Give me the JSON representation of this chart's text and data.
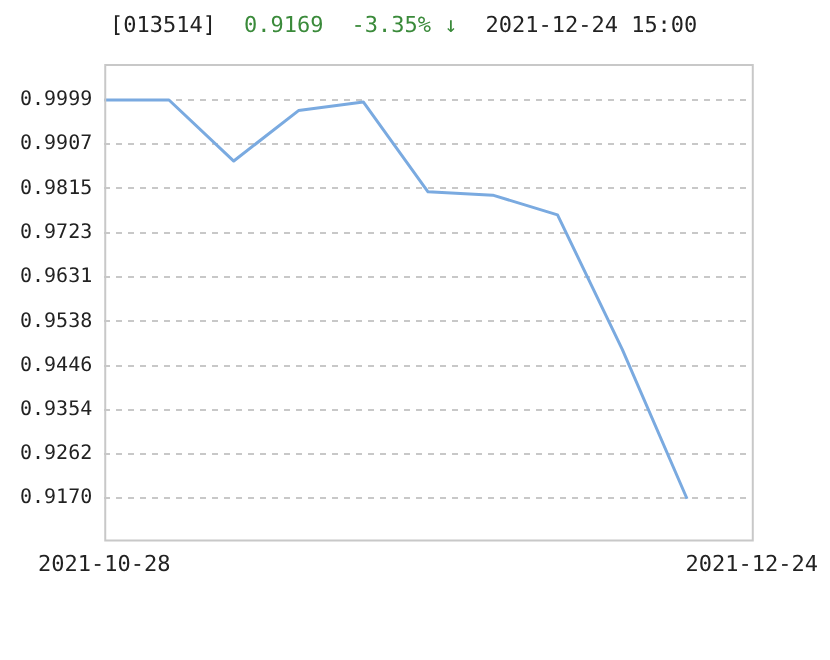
{
  "chart_data": {
    "type": "line",
    "title": "[013514]",
    "annotations": [
      "0.9169",
      "-3.35% ↓",
      "2021-12-24 15:00"
    ],
    "categories": [
      "2021-10-28",
      null,
      null,
      null,
      null,
      null,
      null,
      null,
      null,
      null,
      "2021-12-24"
    ],
    "series": [
      {
        "color": "#7aaae0",
        "values": [
          0.9999,
          0.9999,
          0.9872,
          0.9977,
          0.9995,
          0.9808,
          0.9801,
          0.976,
          0.948,
          0.9169,
          null
        ]
      }
    ],
    "ylim": [
      0.9084,
      1.0074
    ],
    "yticks": [
      {
        "value": 0.917,
        "label": "0.9170"
      },
      0.9262,
      0.9354,
      0.9446,
      0.9538,
      0.9631,
      0.9723,
      0.9815,
      0.9907,
      0.9999
    ],
    "grid": "y",
    "legend": false,
    "marker": "none",
    "line_style": "solid"
  }
}
